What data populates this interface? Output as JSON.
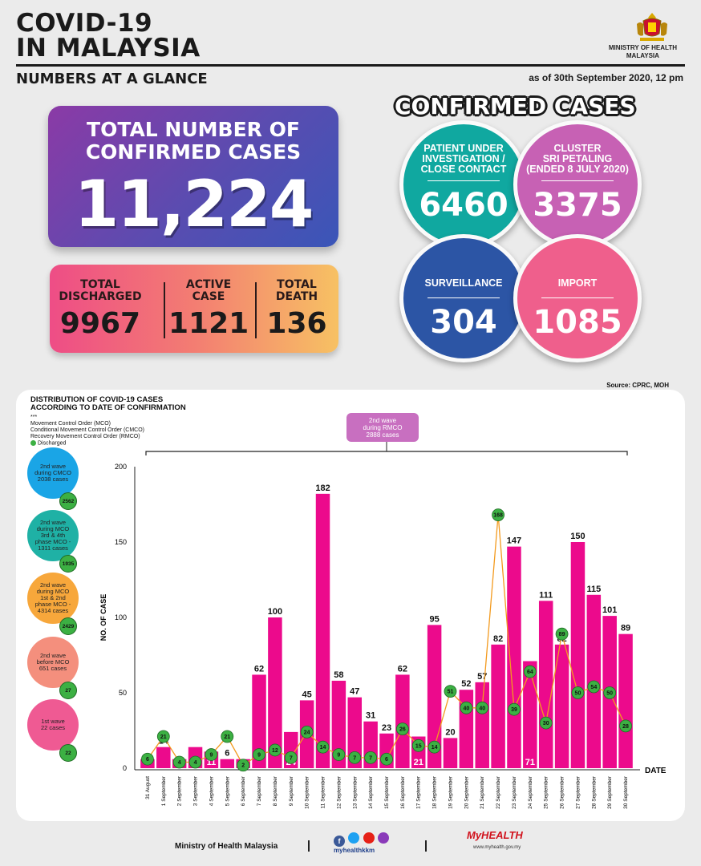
{
  "header": {
    "title_line1": "COVID-19",
    "title_line2": "IN MALAYSIA",
    "subtitle": "NUMBERS AT A GLANCE",
    "as_of": "as of 30th September 2020, 12 pm",
    "ministry_line1": "MINISTRY OF HEALTH",
    "ministry_line2": "MALAYSIA"
  },
  "total": {
    "label_line1": "TOTAL NUMBER OF",
    "label_line2": "CONFIRMED CASES",
    "value": "11,224"
  },
  "stats": [
    {
      "label_line1": "TOTAL",
      "label_line2": "DISCHARGED",
      "value": "9967"
    },
    {
      "label_line1": "ACTIVE",
      "label_line2": "CASE",
      "value": "1121"
    },
    {
      "label_line1": "TOTAL",
      "label_line2": "DEATH",
      "value": "136"
    }
  ],
  "confirmed": {
    "title": "CONFIRMED CASES",
    "circles": [
      {
        "label_line1": "PATIENT UNDER",
        "label_line2": "INVESTIGATION /",
        "label_line3": "CLOSE CONTACT",
        "value": "6460",
        "color": "#10a8a0"
      },
      {
        "label_line1": "CLUSTER",
        "label_line2": "SRI PETALING",
        "label_line3": "(ENDED 8 JULY 2020)",
        "value": "3375",
        "color": "#c761b4"
      },
      {
        "label_line1": "SURVEILLANCE",
        "label_line2": "",
        "label_line3": "",
        "value": "304",
        "color": "#2c55a5"
      },
      {
        "label_line1": "IMPORT",
        "label_line2": "",
        "label_line3": "",
        "value": "1085",
        "color": "#ef5f8c"
      }
    ]
  },
  "source": "Source: CPRC, MOH",
  "panel": {
    "title_line1": "DISTRIBUTION OF COVID-19 CASES",
    "title_line2": "ACCORDING TO DATE OF CONFIRMATION",
    "legend_stars": "***",
    "legend_mco": "Movement Control Order (MCO)",
    "legend_cmco": "Conditional Movement Control Order (CMCO)",
    "legend_rmco": "Recovery Movement Control Order (RMCO)",
    "legend_discharged": "Discharged",
    "rmco_box_line1": "2nd wave",
    "rmco_box_line2": "during RMCO",
    "rmco_box_line3": "2888 cases",
    "waves": [
      {
        "line1": "2nd wave",
        "line2": "during CMCO",
        "line3": "2038 cases",
        "line4": "",
        "discharged": "2562",
        "color": "#1aa5e6"
      },
      {
        "line1": "2nd wave",
        "line2": "during MCO",
        "line3": "3rd & 4th",
        "line4": "phase MCO -",
        "line5": "1311 cases",
        "discharged": "1935",
        "color": "#1fb1a5"
      },
      {
        "line1": "2nd wave",
        "line2": "during MCO",
        "line3": "1st & 2nd",
        "line4": "phase MCO -",
        "line5": "4314 cases",
        "discharged": "2429",
        "color": "#f7a73b"
      },
      {
        "line1": "2nd wave",
        "line2": "before MCO",
        "line3": "651 cases",
        "line4": "",
        "discharged": "27",
        "color": "#f48f7d"
      },
      {
        "line1": "1st wave",
        "line2": "22 cases",
        "line3": "",
        "line4": "",
        "discharged": "22",
        "color": "#ef5a93"
      }
    ]
  },
  "chart_data": {
    "type": "bar",
    "ylabel": "NO. OF CASE",
    "xlabel": "DATE",
    "ylim": [
      0,
      200
    ],
    "yticks": [
      0,
      50,
      100,
      150,
      200
    ],
    "categories": [
      "31 August",
      "1 September",
      "2 September",
      "3 September",
      "4 September",
      "5 September",
      "6 September",
      "7 September",
      "8 September",
      "9 September",
      "10 September",
      "11 September",
      "12 September",
      "13 September",
      "14 September",
      "15 September",
      "16 September",
      "17 September",
      "18 September",
      "19 September",
      "20 September",
      "21 September",
      "22 September",
      "23 September",
      "24 September",
      "25 September",
      "26 September",
      "27 September",
      "28 September",
      "29 September",
      "30 September"
    ],
    "series": [
      {
        "name": "cases",
        "values": [
          6,
          14,
          6,
          14,
          11,
          6,
          6,
          62,
          100,
          24,
          45,
          182,
          58,
          47,
          31,
          23,
          62,
          21,
          95,
          20,
          52,
          57,
          82,
          147,
          71,
          111,
          82,
          150,
          115,
          101,
          89
        ],
        "color": "#ec0a8c"
      },
      {
        "name": "Discharged",
        "values": [
          6,
          21,
          4,
          4,
          9,
          21,
          2,
          9,
          12,
          7,
          24,
          14,
          9,
          7,
          7,
          6,
          26,
          15,
          14,
          51,
          40,
          40,
          168,
          39,
          64,
          30,
          89,
          50,
          54,
          50,
          28
        ],
        "color": "#3cb043"
      }
    ],
    "value_label_inside": [
      true,
      false,
      true,
      true,
      true,
      false,
      true,
      false,
      false,
      true,
      false,
      false,
      false,
      false,
      false,
      false,
      false,
      true,
      false,
      false,
      false,
      false,
      false,
      false,
      true,
      false,
      false,
      false,
      false,
      false,
      false
    ],
    "grid": false,
    "footer_ministry": "Ministry of Health Malaysia",
    "footer_social": "myhealthkkm",
    "footer_brand": "MyHEALTH",
    "footer_url": "www.myhealth.gov.my"
  }
}
